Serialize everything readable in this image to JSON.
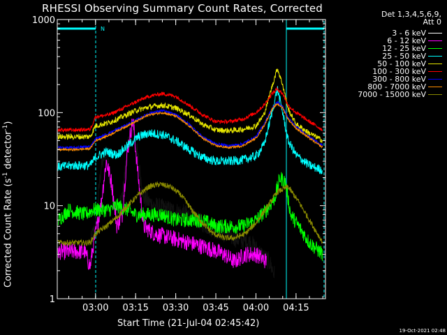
{
  "title": "RHESSI Observing Summary Count Rates, Corrected",
  "ylabel": {
    "text": "Corrected Count Rate (s",
    "sup1": "-1",
    "mid": " detector",
    "sup2": "-1",
    "end": ")"
  },
  "xlabel": "Start Time (21-Jul-04 02:45:42)",
  "footer": "19-Oct-2021 02:48",
  "legend_header": [
    "Det 1,3,4,5,6,9,",
    "Att 0"
  ],
  "legend": [
    {
      "label": "3 - 6 keV",
      "color": "#000000"
    },
    {
      "label": "6 - 12 keV",
      "color": "#ff00ff"
    },
    {
      "label": "12 - 25 keV",
      "color": "#00ff00"
    },
    {
      "label": "25 - 50 keV",
      "color": "#00ffff"
    },
    {
      "label": "50 - 100 keV",
      "color": "#e6e600"
    },
    {
      "label": "100 - 300 keV",
      "color": "#ff0000"
    },
    {
      "label": "300 - 800 keV",
      "color": "#0000ff"
    },
    {
      "label": "800 - 7000 keV",
      "color": "#ff8c00"
    },
    {
      "label": "7000 - 15000 keV",
      "color": "#8b8b00"
    }
  ],
  "annotation_N": "N",
  "chart_data": {
    "type": "line",
    "title": "RHESSI Observing Summary Count Rates, Corrected",
    "xlabel": "Start Time (21-Jul-04 02:45:42)",
    "ylabel": "Corrected Count Rate (s-1 detector-1)",
    "yscale": "log",
    "ylim": [
      1,
      1000
    ],
    "y_ticks": [
      "1",
      "10",
      "100",
      "1000"
    ],
    "xlim": [
      "02:45:42",
      "04:26:00"
    ],
    "x_ticks": [
      "03:00",
      "03:15",
      "03:30",
      "03:45",
      "04:00",
      "04:15"
    ],
    "series": [
      {
        "name": "100 - 300 keV",
        "color": "#ff0000",
        "x": [
          "02:46",
          "02:52",
          "02:58",
          "03:00",
          "03:05",
          "03:10",
          "03:15",
          "03:20",
          "03:25",
          "03:30",
          "03:35",
          "03:40",
          "03:45",
          "03:50",
          "03:55",
          "04:00",
          "04:03",
          "04:06",
          "04:08",
          "04:10",
          "04:12",
          "04:15",
          "04:20",
          "04:25"
        ],
        "y": [
          65,
          65,
          66,
          90,
          95,
          110,
          130,
          150,
          160,
          150,
          120,
          95,
          80,
          80,
          85,
          100,
          120,
          160,
          180,
          160,
          120,
          100,
          80,
          65
        ]
      },
      {
        "name": "50 - 100 keV",
        "color": "#e6e600",
        "x": [
          "02:46",
          "02:52",
          "02:58",
          "03:00",
          "03:05",
          "03:10",
          "03:15",
          "03:20",
          "03:25",
          "03:30",
          "03:35",
          "03:40",
          "03:45",
          "03:50",
          "03:55",
          "04:00",
          "04:03",
          "04:06",
          "04:08",
          "04:10",
          "04:12",
          "04:15",
          "04:20",
          "04:25"
        ],
        "y": [
          55,
          55,
          55,
          72,
          78,
          90,
          105,
          115,
          120,
          112,
          95,
          75,
          65,
          64,
          66,
          72,
          95,
          190,
          300,
          200,
          110,
          75,
          60,
          50
        ]
      },
      {
        "name": "300 - 800 keV",
        "color": "#0000ff",
        "x": [
          "02:46",
          "02:52",
          "02:58",
          "03:00",
          "03:05",
          "03:10",
          "03:15",
          "03:20",
          "03:25",
          "03:30",
          "03:35",
          "03:40",
          "03:45",
          "03:50",
          "03:55",
          "04:00",
          "04:03",
          "04:06",
          "04:08",
          "04:10",
          "04:12",
          "04:15",
          "04:20",
          "04:25"
        ],
        "y": [
          42,
          42,
          43,
          52,
          60,
          70,
          82,
          98,
          105,
          95,
          75,
          55,
          46,
          44,
          46,
          55,
          75,
          110,
          130,
          115,
          88,
          70,
          55,
          44
        ]
      },
      {
        "name": "800 - 7000 keV",
        "color": "#ff8c00",
        "x": [
          "02:46",
          "02:52",
          "02:58",
          "03:00",
          "03:05",
          "03:10",
          "03:15",
          "03:20",
          "03:25",
          "03:30",
          "03:35",
          "03:40",
          "03:45",
          "03:50",
          "03:55",
          "04:00",
          "04:03",
          "04:06",
          "04:08",
          "04:10",
          "04:12",
          "04:15",
          "04:20",
          "04:25"
        ],
        "y": [
          40,
          40,
          41,
          50,
          57,
          68,
          80,
          95,
          100,
          92,
          72,
          53,
          44,
          42,
          44,
          53,
          72,
          108,
          125,
          112,
          85,
          68,
          53,
          42
        ]
      },
      {
        "name": "25 - 50 keV",
        "color": "#00ffff",
        "x": [
          "02:46",
          "02:52",
          "02:58",
          "03:00",
          "03:04",
          "03:08",
          "03:12",
          "03:16",
          "03:20",
          "03:25",
          "03:30",
          "03:35",
          "03:40",
          "03:45",
          "03:50",
          "03:55",
          "04:00",
          "04:03",
          "04:06",
          "04:08",
          "04:10",
          "04:12",
          "04:15",
          "04:20",
          "04:25"
        ],
        "y": [
          26,
          27,
          27,
          33,
          38,
          35,
          44,
          55,
          60,
          58,
          50,
          40,
          33,
          30,
          30,
          31,
          34,
          45,
          100,
          180,
          100,
          50,
          35,
          27,
          24
        ]
      },
      {
        "name": "12 - 25 keV",
        "color": "#00ff00",
        "x": [
          "02:46",
          "02:50",
          "02:56",
          "02:59",
          "03:00",
          "03:05",
          "03:08",
          "03:12",
          "03:15",
          "03:20",
          "03:25",
          "03:30",
          "03:35",
          "03:40",
          "03:45",
          "03:50",
          "03:55",
          "04:00",
          "04:04",
          "04:07",
          "04:09",
          "04:11",
          "04:13",
          "04:16",
          "04:20",
          "04:25"
        ],
        "y": [
          7,
          9,
          8,
          9,
          9,
          9,
          10,
          9,
          8,
          8,
          8,
          7,
          7,
          7,
          6,
          6,
          6,
          7,
          9,
          12,
          20,
          18,
          8,
          6,
          4,
          3
        ]
      },
      {
        "name": "6 - 12 keV",
        "color": "#ff00ff",
        "x": [
          "02:46",
          "02:52",
          "02:56",
          "02:58",
          "02:59",
          "03:02",
          "03:04",
          "03:06",
          "03:08",
          "03:10",
          "03:12",
          "03:14",
          "03:16",
          "03:18",
          "03:22",
          "03:28",
          "03:35",
          "03:42",
          "03:48",
          "03:52",
          "03:56",
          "04:00",
          "04:04"
        ],
        "y": [
          3.2,
          3.2,
          3.2,
          2.2,
          3.5,
          10,
          30,
          18,
          6,
          8,
          40,
          85,
          20,
          6,
          5,
          4.5,
          4,
          3.5,
          3,
          2.5,
          3,
          3,
          2.5
        ]
      },
      {
        "name": "3 - 6 keV",
        "color": "#000000",
        "x": [
          "02:58",
          "03:00",
          "03:02",
          "03:04",
          "03:06",
          "03:08",
          "03:10",
          "03:12",
          "03:14",
          "03:16",
          "03:18",
          "03:22",
          "03:28",
          "03:35",
          "03:42",
          "03:48",
          "03:52",
          "03:58",
          "04:02",
          "04:05",
          "04:07"
        ],
        "y": [
          4,
          6,
          25,
          40,
          15,
          8,
          12,
          40,
          75,
          30,
          12,
          10,
          9,
          8,
          6,
          5,
          4.5,
          4,
          3,
          2.5,
          1.8
        ]
      },
      {
        "name": "7000 - 15000 keV",
        "color": "#8b8b00",
        "x": [
          "02:46",
          "02:52",
          "02:58",
          "03:00",
          "03:04",
          "03:08",
          "03:12",
          "03:16",
          "03:20",
          "03:24",
          "03:28",
          "03:32",
          "03:36",
          "03:40",
          "03:44",
          "03:48",
          "03:52",
          "03:56",
          "04:00",
          "04:04",
          "04:08",
          "04:12",
          "04:16",
          "04:20",
          "04:25"
        ],
        "y": [
          4,
          4,
          4,
          5,
          6,
          7.5,
          10,
          13,
          16,
          17,
          16,
          13,
          9,
          6.5,
          5,
          4.5,
          4.5,
          5,
          6.5,
          9.5,
          14,
          16,
          11,
          7,
          4
        ]
      }
    ]
  }
}
